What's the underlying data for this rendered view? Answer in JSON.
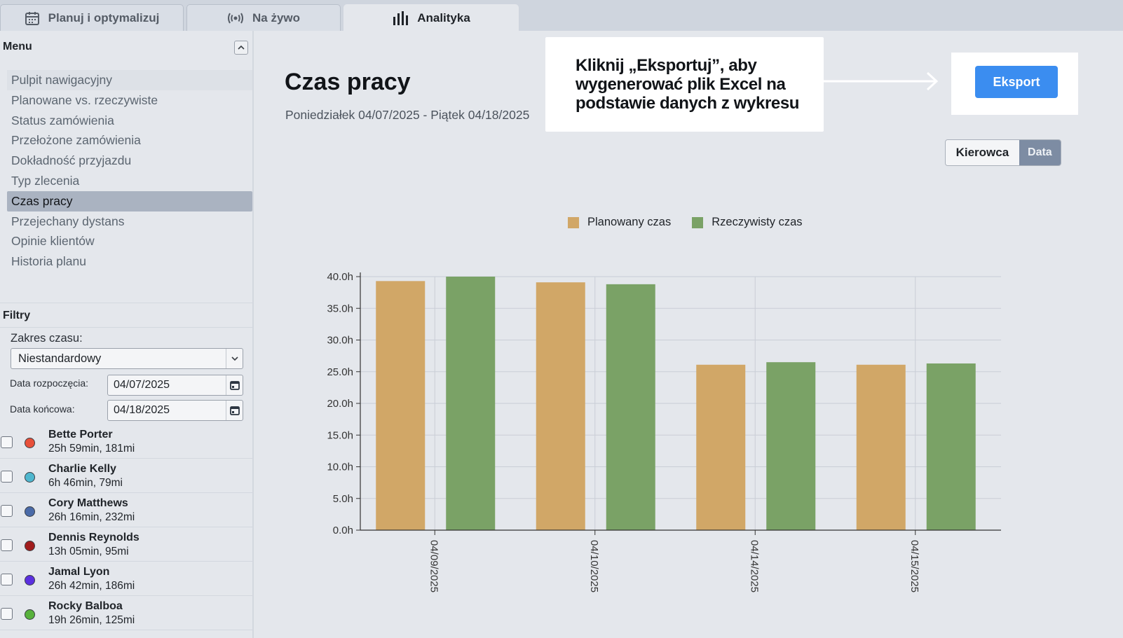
{
  "tabs": [
    {
      "label": "Planuj i optymalizuj",
      "icon": "calendar-icon"
    },
    {
      "label": "Na żywo",
      "icon": "broadcast-icon"
    },
    {
      "label": "Analityka",
      "icon": "bar-chart-icon",
      "active": true
    }
  ],
  "sidebar": {
    "menu_title": "Menu",
    "items": [
      {
        "label": "Pulpit nawigacyjny"
      },
      {
        "label": "Planowane vs. rzeczywiste"
      },
      {
        "label": "Status zamówienia"
      },
      {
        "label": "Przełożone zamówienia"
      },
      {
        "label": "Dokładność przyjazdu"
      },
      {
        "label": "Typ zlecenia"
      },
      {
        "label": "Czas pracy",
        "active": true
      },
      {
        "label": "Przejechany dystans"
      },
      {
        "label": "Opinie klientów"
      },
      {
        "label": "Historia planu"
      }
    ],
    "filters_title": "Filtry",
    "range_label": "Zakres czasu:",
    "range_value": "Niestandardowy",
    "start_label": "Data rozpoczęcia:",
    "start_value": "04/07/2025",
    "end_label": "Data końcowa:",
    "end_value": "04/18/2025",
    "drivers": [
      {
        "name": "Bette Porter",
        "stats": "25h 59min, 181mi",
        "color": "#e8503a"
      },
      {
        "name": "Charlie Kelly",
        "stats": "6h 46min, 79mi",
        "color": "#4fb7cf"
      },
      {
        "name": "Cory Matthews",
        "stats": "26h 16min, 232mi",
        "color": "#4a6aa8"
      },
      {
        "name": "Dennis Reynolds",
        "stats": "13h 05min, 95mi",
        "color": "#a11c1c"
      },
      {
        "name": "Jamal Lyon",
        "stats": "26h 42min, 186mi",
        "color": "#5b2fe0"
      },
      {
        "name": "Rocky Balboa",
        "stats": "19h 26min, 125mi",
        "color": "#58b13c"
      }
    ]
  },
  "main": {
    "title": "Czas pracy",
    "date_range": "Poniedziałek 04/07/2025 - Piątek 04/18/2025",
    "callout": "Kliknij „Eksportuj”, aby wygenerować plik Excel na podstawie danych z wykresu",
    "export_label": "Eksport",
    "toggle": {
      "left": "Kierowca",
      "right": "Data"
    }
  },
  "colors": {
    "planned": "#d1a767",
    "actual": "#7aa266",
    "accent": "#3b8df0"
  },
  "chart_data": {
    "type": "bar",
    "categories": [
      "04/09/2025",
      "04/10/2025",
      "04/14/2025",
      "04/15/2025"
    ],
    "series": [
      {
        "name": "Planowany czas",
        "values": [
          39.3,
          39.1,
          26.1,
          26.1
        ]
      },
      {
        "name": "Rzeczywisty czas",
        "values": [
          40.0,
          38.8,
          26.5,
          26.3
        ]
      }
    ],
    "ylim": [
      0,
      40
    ],
    "yticks": [
      0,
      5,
      10,
      15,
      20,
      25,
      30,
      35,
      40
    ],
    "ytick_labels": [
      "0.0h",
      "5.0h",
      "10.0h",
      "15.0h",
      "20.0h",
      "25.0h",
      "30.0h",
      "35.0h",
      "40.0h"
    ],
    "legend_position": "top",
    "grid": true
  }
}
